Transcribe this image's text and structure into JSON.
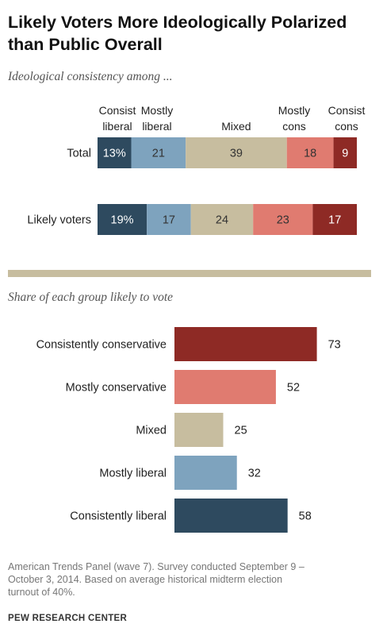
{
  "title": "Likely Voters More Ideologically Polarized than Public Overall",
  "chart_data": [
    {
      "type": "bar",
      "orientation": "horizontal",
      "stacked": true,
      "subtitle": "Ideological consistency among ...",
      "categories": [
        "Total",
        "Likely voters"
      ],
      "series": [
        {
          "name": "Consist liberal",
          "name_lines": [
            "Consist",
            "liberal"
          ],
          "values": [
            13,
            19
          ],
          "labels": [
            "13%",
            "19%"
          ],
          "color": "#2e4a5f"
        },
        {
          "name": "Mostly liberal",
          "name_lines": [
            "Mostly",
            "liberal"
          ],
          "values": [
            21,
            17
          ],
          "labels": [
            "21",
            "17"
          ],
          "color": "#7ea3be"
        },
        {
          "name": "Mixed",
          "name_lines": [
            "Mixed"
          ],
          "values": [
            39,
            24
          ],
          "labels": [
            "39",
            "24"
          ],
          "color": "#c7bd9f"
        },
        {
          "name": "Mostly cons",
          "name_lines": [
            "Mostly",
            "cons"
          ],
          "values": [
            18,
            23
          ],
          "labels": [
            "18",
            "23"
          ],
          "color": "#e07b70"
        },
        {
          "name": "Consist cons",
          "name_lines": [
            "Consist",
            "cons"
          ],
          "values": [
            9,
            17
          ],
          "labels": [
            "9",
            "17"
          ],
          "color": "#8e2a25"
        }
      ],
      "xlim": [
        0,
        100
      ],
      "grid": false
    },
    {
      "type": "bar",
      "orientation": "horizontal",
      "subtitle": "Share of each group likely to vote",
      "categories": [
        "Consistently conservative",
        "Mostly conservative",
        "Mixed",
        "Mostly liberal",
        "Consistently liberal"
      ],
      "values": [
        73,
        52,
        25,
        32,
        58
      ],
      "colors": [
        "#8e2a25",
        "#e07b70",
        "#c7bd9f",
        "#7ea3be",
        "#2e4a5f"
      ],
      "xlim": [
        0,
        100
      ],
      "grid": false
    }
  ],
  "source_lines": [
    "American Trends Panel (wave 7). Survey conducted September 9 –",
    "October 3, 2014.  Based on average historical midterm election",
    "turnout of 40%."
  ],
  "footer": "PEW RESEARCH CENTER",
  "colors": {
    "divider": "#c7bd9f",
    "label_light": "#ffffff",
    "label_dark": "#333333"
  }
}
